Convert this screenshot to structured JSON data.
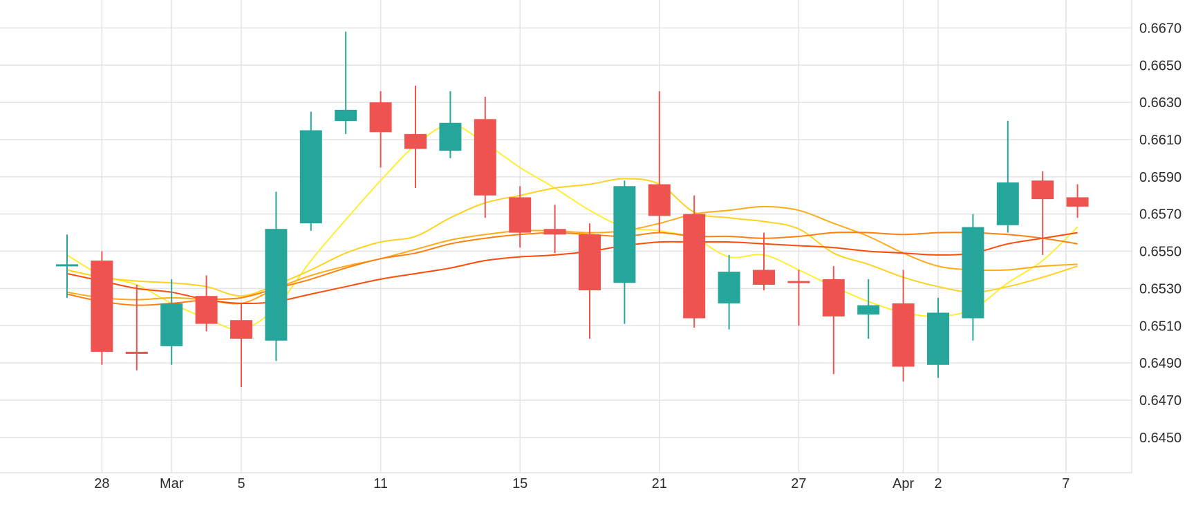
{
  "chart_data": {
    "type": "candlestick",
    "title": "",
    "xlabel": "",
    "ylabel": "",
    "ylim": [
      0.6431,
      0.6685
    ],
    "grid": true,
    "legend": "none",
    "y_ticks": [
      "0.6670",
      "0.6650",
      "0.6630",
      "0.6610",
      "0.6590",
      "0.6570",
      "0.6550",
      "0.6530",
      "0.6510",
      "0.6490",
      "0.6470",
      "0.6450"
    ],
    "x_ticks": [
      {
        "label": "28",
        "date": "2024-02-28"
      },
      {
        "label": "Mar",
        "date": "2024-03-01"
      },
      {
        "label": "5",
        "date": "2024-03-05"
      },
      {
        "label": "11",
        "date": "2024-03-11"
      },
      {
        "label": "15",
        "date": "2024-03-15"
      },
      {
        "label": "21",
        "date": "2024-03-21"
      },
      {
        "label": "27",
        "date": "2024-03-27"
      },
      {
        "label": "Apr",
        "date": "2024-04-01"
      },
      {
        "label": "2",
        "date": "2024-04-02"
      },
      {
        "label": "7",
        "date": "2024-04-07"
      }
    ],
    "colors": {
      "up": "#26a69a",
      "down": "#ef5350",
      "grid": "#e3e3e3"
    },
    "candles": [
      {
        "date": "2024-02-27",
        "open": 0.6543,
        "high": 0.6559,
        "low": 0.6525,
        "close": 0.6543
      },
      {
        "date": "2024-02-28",
        "open": 0.6545,
        "high": 0.655,
        "low": 0.6489,
        "close": 0.6496
      },
      {
        "date": "2024-02-29",
        "open": 0.6496,
        "high": 0.6532,
        "low": 0.6486,
        "close": 0.6495
      },
      {
        "date": "2024-03-01",
        "open": 0.6499,
        "high": 0.6535,
        "low": 0.6489,
        "close": 0.6522
      },
      {
        "date": "2024-03-04",
        "open": 0.6526,
        "high": 0.6537,
        "low": 0.6507,
        "close": 0.6511
      },
      {
        "date": "2024-03-05",
        "open": 0.6513,
        "high": 0.6522,
        "low": 0.6477,
        "close": 0.6503
      },
      {
        "date": "2024-03-06",
        "open": 0.6502,
        "high": 0.6582,
        "low": 0.6491,
        "close": 0.6562
      },
      {
        "date": "2024-03-07",
        "open": 0.6565,
        "high": 0.6625,
        "low": 0.6561,
        "close": 0.6615
      },
      {
        "date": "2024-03-08",
        "open": 0.662,
        "high": 0.6668,
        "low": 0.6613,
        "close": 0.6626
      },
      {
        "date": "2024-03-11",
        "open": 0.663,
        "high": 0.6636,
        "low": 0.6595,
        "close": 0.6614
      },
      {
        "date": "2024-03-12",
        "open": 0.6613,
        "high": 0.6639,
        "low": 0.6584,
        "close": 0.6605
      },
      {
        "date": "2024-03-13",
        "open": 0.6604,
        "high": 0.6636,
        "low": 0.66,
        "close": 0.6619
      },
      {
        "date": "2024-03-14",
        "open": 0.6621,
        "high": 0.6633,
        "low": 0.6568,
        "close": 0.658
      },
      {
        "date": "2024-03-15",
        "open": 0.6579,
        "high": 0.6585,
        "low": 0.6552,
        "close": 0.656
      },
      {
        "date": "2024-03-18",
        "open": 0.6562,
        "high": 0.6575,
        "low": 0.6549,
        "close": 0.6559
      },
      {
        "date": "2024-03-19",
        "open": 0.6559,
        "high": 0.6565,
        "low": 0.6503,
        "close": 0.6529
      },
      {
        "date": "2024-03-20",
        "open": 0.6533,
        "high": 0.6588,
        "low": 0.6511,
        "close": 0.6585
      },
      {
        "date": "2024-03-21",
        "open": 0.6586,
        "high": 0.6636,
        "low": 0.656,
        "close": 0.6569
      },
      {
        "date": "2024-03-22",
        "open": 0.657,
        "high": 0.658,
        "low": 0.6509,
        "close": 0.6514
      },
      {
        "date": "2024-03-25",
        "open": 0.6522,
        "high": 0.6548,
        "low": 0.6508,
        "close": 0.6539
      },
      {
        "date": "2024-03-26",
        "open": 0.654,
        "high": 0.656,
        "low": 0.6529,
        "close": 0.6532
      },
      {
        "date": "2024-03-27",
        "open": 0.6534,
        "high": 0.654,
        "low": 0.651,
        "close": 0.6533
      },
      {
        "date": "2024-03-28",
        "open": 0.6535,
        "high": 0.6542,
        "low": 0.6484,
        "close": 0.6515
      },
      {
        "date": "2024-03-29",
        "open": 0.6516,
        "high": 0.6535,
        "low": 0.6503,
        "close": 0.6521
      },
      {
        "date": "2024-04-01",
        "open": 0.6522,
        "high": 0.654,
        "low": 0.648,
        "close": 0.6488
      },
      {
        "date": "2024-04-02",
        "open": 0.6489,
        "high": 0.6525,
        "low": 0.6482,
        "close": 0.6517
      },
      {
        "date": "2024-04-03",
        "open": 0.6514,
        "high": 0.657,
        "low": 0.6502,
        "close": 0.6563
      },
      {
        "date": "2024-04-04",
        "open": 0.6564,
        "high": 0.662,
        "low": 0.656,
        "close": 0.6587
      },
      {
        "date": "2024-04-05",
        "open": 0.6588,
        "high": 0.6593,
        "low": 0.6548,
        "close": 0.6578
      },
      {
        "date": "2024-04-08",
        "open": 0.6579,
        "high": 0.6586,
        "low": 0.6568,
        "close": 0.6574
      }
    ],
    "overlay_lines": [
      {
        "color": "#ffee33",
        "values": [
          0.6548,
          0.6537,
          0.6532,
          0.6522,
          0.6514,
          0.6508,
          0.652,
          0.6545,
          0.6567,
          0.6588,
          0.6607,
          0.6618,
          0.6608,
          0.6595,
          0.6584,
          0.6572,
          0.6563,
          0.6561,
          0.6557,
          0.6547,
          0.6548,
          0.654,
          0.6531,
          0.6523,
          0.6517,
          0.6515,
          0.6519,
          0.6533,
          0.6545,
          0.6563
        ]
      },
      {
        "color": "#ffd21f",
        "values": [
          0.654,
          0.6536,
          0.6534,
          0.6533,
          0.6531,
          0.6526,
          0.6532,
          0.654,
          0.6549,
          0.6555,
          0.6558,
          0.6568,
          0.6576,
          0.658,
          0.6584,
          0.6586,
          0.6589,
          0.6586,
          0.6571,
          0.6568,
          0.6566,
          0.6562,
          0.6549,
          0.6543,
          0.6536,
          0.6531,
          0.6528,
          0.6531,
          0.6536,
          0.6542
        ]
      },
      {
        "color": "#ffaa1a",
        "values": [
          0.6528,
          0.6525,
          0.6524,
          0.6525,
          0.6524,
          0.6522,
          0.653,
          0.6537,
          0.6542,
          0.6546,
          0.6551,
          0.6556,
          0.6559,
          0.6561,
          0.6561,
          0.656,
          0.6561,
          0.6565,
          0.657,
          0.6572,
          0.6574,
          0.6572,
          0.6565,
          0.6558,
          0.6549,
          0.6542,
          0.654,
          0.654,
          0.6542,
          0.6543
        ]
      },
      {
        "color": "#ff7f11",
        "values": [
          0.6527,
          0.6523,
          0.6521,
          0.6522,
          0.6524,
          0.6525,
          0.653,
          0.6535,
          0.6541,
          0.6546,
          0.6549,
          0.6554,
          0.6557,
          0.6559,
          0.656,
          0.6559,
          0.6558,
          0.656,
          0.6558,
          0.6558,
          0.6557,
          0.6558,
          0.656,
          0.656,
          0.6559,
          0.656,
          0.656,
          0.6559,
          0.6557,
          0.6554
        ]
      },
      {
        "color": "#ff4b0a",
        "values": [
          0.6538,
          0.6534,
          0.653,
          0.6528,
          0.6524,
          0.6522,
          0.6523,
          0.6527,
          0.6531,
          0.6535,
          0.6538,
          0.6541,
          0.6545,
          0.6547,
          0.6548,
          0.655,
          0.6553,
          0.6555,
          0.6555,
          0.6555,
          0.6554,
          0.6553,
          0.6552,
          0.655,
          0.6549,
          0.6548,
          0.6549,
          0.6554,
          0.6557,
          0.656
        ]
      }
    ]
  }
}
